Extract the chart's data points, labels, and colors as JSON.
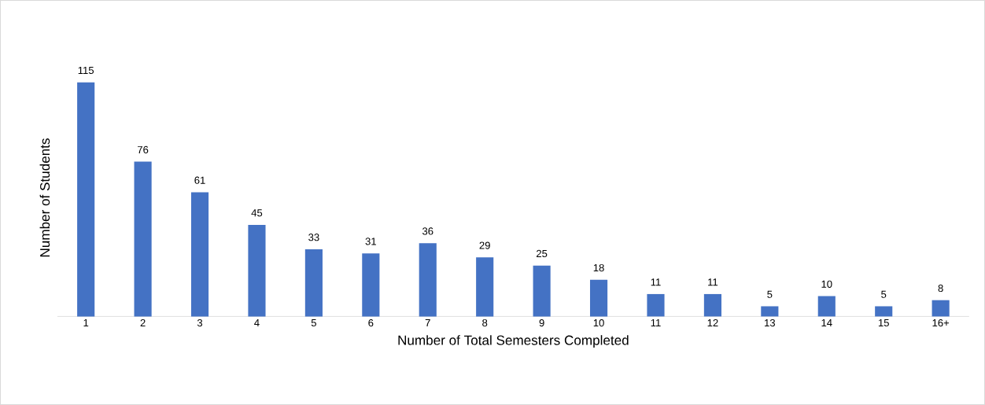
{
  "chart_data": {
    "type": "bar",
    "xlabel": "Number of Total Semesters Completed",
    "ylabel": "Number of Students",
    "categories": [
      "1",
      "2",
      "3",
      "4",
      "5",
      "6",
      "7",
      "8",
      "9",
      "10",
      "11",
      "12",
      "13",
      "14",
      "15",
      "16+"
    ],
    "values": [
      115,
      76,
      61,
      45,
      33,
      31,
      36,
      29,
      25,
      18,
      11,
      11,
      5,
      10,
      5,
      8
    ],
    "color": "#4472c4",
    "data_labels": true
  }
}
